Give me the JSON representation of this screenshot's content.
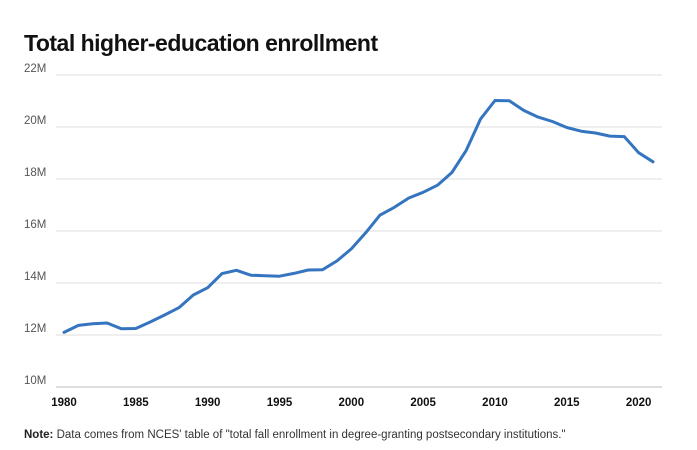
{
  "chart_data": {
    "type": "line",
    "title": "Total higher-education enrollment",
    "xlabel": "",
    "ylabel": "",
    "xlim": [
      1980,
      2021
    ],
    "ylim": [
      10,
      22
    ],
    "y_ticks": [
      10,
      12,
      14,
      16,
      18,
      20,
      22
    ],
    "y_tick_labels": [
      "10M",
      "12M",
      "14M",
      "16M",
      "18M",
      "20M",
      "22M"
    ],
    "x_ticks": [
      1980,
      1985,
      1990,
      1995,
      2000,
      2005,
      2010,
      2015,
      2020
    ],
    "x_tick_labels": [
      "1980",
      "1985",
      "1990",
      "1995",
      "2000",
      "2005",
      "2010",
      "2015",
      "2020"
    ],
    "grid": true,
    "line_color": "#3575c0",
    "series": [
      {
        "x": [
          1980,
          1981,
          1982,
          1983,
          1984,
          1985,
          1986,
          1987,
          1988,
          1989,
          1990,
          1991,
          1992,
          1993,
          1994,
          1995,
          1996,
          1997,
          1998,
          1999,
          2000,
          2001,
          2002,
          2003,
          2004,
          2005,
          2006,
          2007,
          2008,
          2009,
          2010,
          2011,
          2012,
          2013,
          2014,
          2015,
          2016,
          2017,
          2018,
          2019,
          2020,
          2021
        ],
        "values": [
          12.1,
          12.37,
          12.43,
          12.46,
          12.24,
          12.25,
          12.5,
          12.77,
          13.05,
          13.54,
          13.82,
          14.36,
          14.49,
          14.3,
          14.28,
          14.26,
          14.37,
          14.5,
          14.51,
          14.85,
          15.31,
          15.93,
          16.61,
          16.91,
          17.27,
          17.49,
          17.76,
          18.25,
          19.1,
          20.31,
          21.02,
          21.01,
          20.64,
          20.38,
          20.21,
          19.98,
          19.84,
          19.77,
          19.65,
          19.63,
          19.01,
          18.66
        ]
      }
    ]
  },
  "note": {
    "label": "Note:",
    "text": " Data comes from NCES' table of \"total fall enrollment in degree-granting postsecondary institutions.\""
  }
}
